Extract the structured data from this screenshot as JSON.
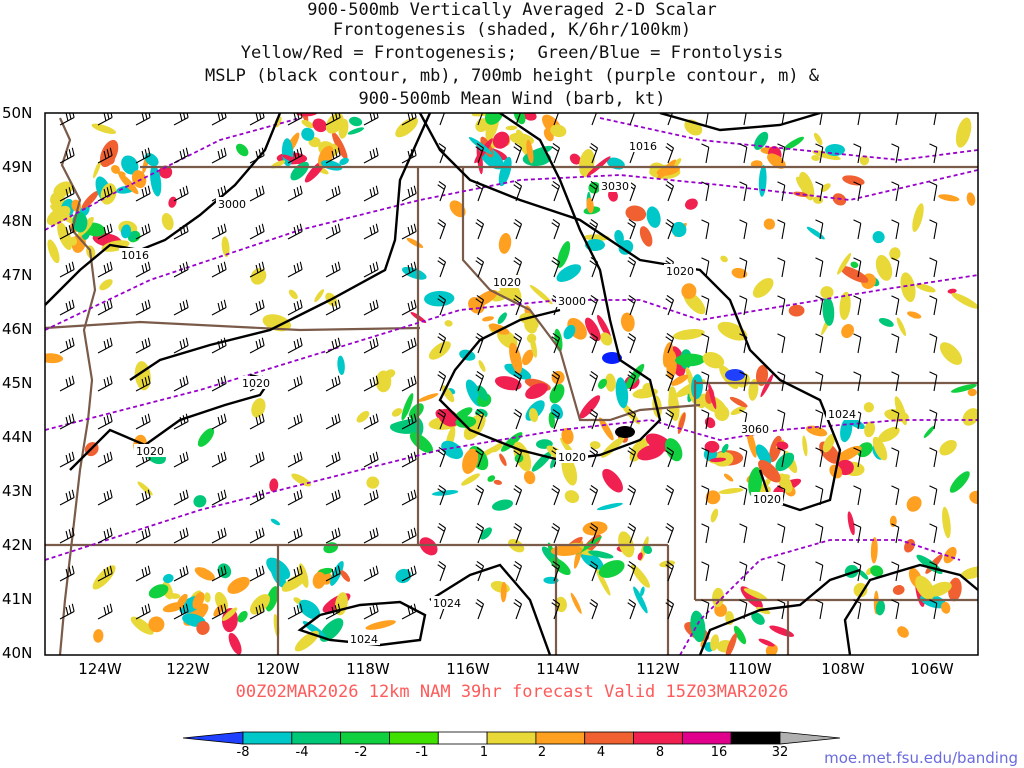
{
  "title": {
    "line1": "900-500mb Vertically Averaged 2-D Scalar",
    "line2": "Frontogenesis (shaded, K/6hr/100km)",
    "line3": "Yellow/Red = Frontogenesis;  Green/Blue = Frontolysis",
    "line4": "MSLP (black contour, mb), 700mb height (purple contour, m) &",
    "line5": "900-500mb Mean Wind (barb, kt)"
  },
  "axes": {
    "lat_labels": [
      "50N",
      "49N",
      "48N",
      "47N",
      "46N",
      "45N",
      "44N",
      "43N",
      "42N",
      "41N",
      "40N"
    ],
    "lon_labels": [
      "124W",
      "122W",
      "120W",
      "118W",
      "116W",
      "114W",
      "112W",
      "110W",
      "108W",
      "106W"
    ]
  },
  "contour_labels": {
    "mslp": [
      "1016",
      "1016",
      "1020",
      "1020",
      "1020",
      "1020",
      "1024",
      "1020",
      "1020",
      "1024",
      "1024"
    ],
    "height": [
      "3000",
      "3030",
      "3000",
      "3060"
    ]
  },
  "valid_line": "00Z02MAR2026 12km NAM 39hr forecast Valid 15Z03MAR2026",
  "credit": "moe.met.fsu.edu/banding",
  "colorbar": {
    "ticks": [
      "-8",
      "-4",
      "-2",
      "-1",
      "1",
      "2",
      "4",
      "8",
      "16",
      "32"
    ],
    "colors": [
      "#2040ff",
      "#00c8c8",
      "#00c878",
      "#10d040",
      "#40e000",
      "#ffffff",
      "#e8d838",
      "#ffa020",
      "#f06030",
      "#f02050",
      "#e0008c",
      "#000000",
      "#b0b0b0"
    ]
  },
  "colors": {
    "mslp_contour": "#000000",
    "height_contour": "#9900cc",
    "border": "#7a5a48",
    "wind_barb": "#000000"
  }
}
